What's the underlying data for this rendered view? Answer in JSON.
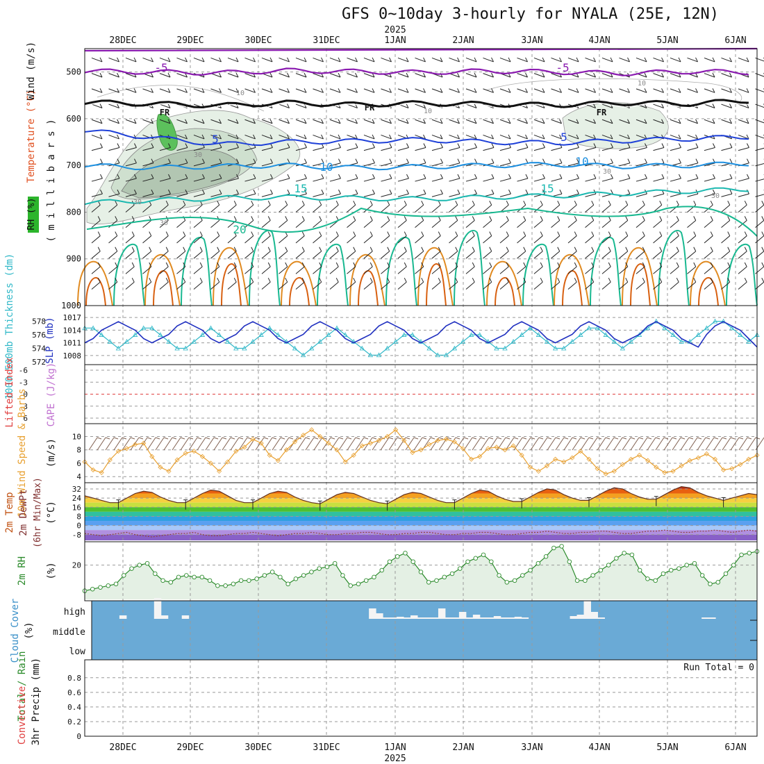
{
  "title": "GFS 0~10day 3-hourly for NYALA (25E, 12N)",
  "time_axis": {
    "labels": [
      "28DEC",
      "29DEC",
      "30DEC",
      "31DEC",
      "1JAN",
      "2JAN",
      "3JAN",
      "4JAN",
      "5JAN",
      "6JAN"
    ],
    "year_label": "2025"
  },
  "colors": {
    "grid": "#999999",
    "wind_purple": "#8a1ab0",
    "temp_blue": "#1e40d8",
    "temp_lightblue": "#1c8fe0",
    "temp_cyan": "#1ab8b0",
    "temp_teal": "#18b890",
    "temp_orange": "#e08a20",
    "slp_line": "#2030c0",
    "thickness_line": "#30b8c8",
    "wind10m_line": "#e8a030",
    "rh2m_line": "#2a8a2a",
    "cloud_fill": "#6aaad6",
    "lifted_zero": "#e04040"
  },
  "chart_data": [
    {
      "type": "heatmap",
      "panel": "cross-section",
      "ylabel_parts": [
        "RH (%)",
        "Temperature (°C)",
        "Wind (m/s)",
        "( m i l l i b a r s )"
      ],
      "y_ticks": [
        500,
        600,
        700,
        800,
        900,
        1000
      ],
      "ylim": [
        1000,
        450
      ],
      "contour_labels": {
        "temperature": [
          "-5",
          "-5",
          "5",
          "5",
          "10",
          "10",
          "15",
          "15",
          "20"
        ],
        "rh": [
          "30",
          "30",
          "30",
          "10",
          "10",
          "10",
          "30",
          "30"
        ],
        "freezing": [
          "FR",
          "FR",
          "FR"
        ]
      },
      "temp_levels_mb": {
        "minus5": [
          498,
          500,
          502,
          497,
          499,
          501,
          498,
          500,
          503,
          499,
          501
        ],
        "freezing": [
          565,
          568,
          572,
          566,
          570,
          567,
          569,
          571,
          566,
          568,
          560
        ],
        "plus5": [
          625,
          640,
          655,
          650,
          648,
          645,
          650,
          652,
          647,
          643,
          638
        ],
        "plus10": [
          700,
          705,
          702,
          700,
          705,
          703,
          700,
          698,
          702,
          700,
          695
        ],
        "plus15": [
          780,
          775,
          770,
          768,
          770,
          772,
          768,
          765,
          760,
          755,
          750
        ]
      }
    },
    {
      "type": "line",
      "panel": "SLP and 1000-500mb thickness",
      "ylabel_left": "1000-500mb Thickness (dm)",
      "ylabel_right": "SLP (mb)",
      "y_ticks_left": [
        572,
        574,
        576,
        578
      ],
      "y_ticks_right": [
        1008,
        1011,
        1014,
        1017
      ],
      "series": [
        {
          "name": "SLP (mb)",
          "values": [
            1011,
            1012,
            1014,
            1015,
            1016,
            1015,
            1014,
            1012,
            1011,
            1012,
            1013,
            1015,
            1016,
            1015,
            1014,
            1012,
            1011,
            1012,
            1013,
            1015,
            1016,
            1015,
            1014,
            1012,
            1011,
            1012,
            1013,
            1015,
            1016,
            1015,
            1014,
            1012,
            1011,
            1012,
            1013,
            1015,
            1016,
            1015,
            1014,
            1012,
            1011,
            1012,
            1013,
            1015,
            1016,
            1015,
            1014,
            1012,
            1011,
            1012,
            1013,
            1015,
            1016,
            1015,
            1014,
            1012,
            1011,
            1012,
            1013,
            1015,
            1016,
            1015,
            1014,
            1012,
            1011,
            1012,
            1013,
            1015,
            1016,
            1015,
            1014,
            1012,
            1011,
            1010,
            1013,
            1015,
            1016,
            1015,
            1014,
            1012,
            1010
          ]
        },
        {
          "name": "1000-500mb Thickness (dm)",
          "values": [
            577,
            577,
            576,
            575,
            574,
            575,
            576,
            577,
            577,
            576,
            575,
            574,
            574,
            575,
            576,
            577,
            576,
            575,
            574,
            574,
            575,
            576,
            577,
            576,
            575,
            574,
            573,
            574,
            575,
            576,
            577,
            576,
            575,
            574,
            573,
            573,
            574,
            575,
            576,
            576,
            575,
            574,
            573,
            573,
            574,
            575,
            576,
            576,
            575,
            574,
            574,
            575,
            576,
            577,
            576,
            575,
            574,
            574,
            575,
            576,
            577,
            577,
            576,
            575,
            574,
            575,
            576,
            577,
            578,
            577,
            576,
            575,
            575,
            576,
            577,
            578,
            578,
            577,
            576,
            575,
            576
          ]
        }
      ]
    },
    {
      "type": "line",
      "panel": "Lifted Index / CAPE",
      "ylabel": "Lifted Index",
      "ylabel2": "CAPE (J/kg)",
      "y_ticks": [
        "-6",
        "-3",
        "0",
        "3",
        "6"
      ],
      "series": [
        {
          "name": "Lifted Index",
          "values": []
        }
      ]
    },
    {
      "type": "line",
      "panel": "10m Wind Speed & Barbs",
      "ylabel": "10m Wind Speed & Barbs",
      "yunit": "(m/s)",
      "y_ticks": [
        4,
        6,
        8,
        10
      ],
      "ylim": [
        3.5,
        11.5
      ],
      "series": [
        {
          "name": "10m Wind Speed",
          "values": [
            6.2,
            5.0,
            4.6,
            6.5,
            7.8,
            8.2,
            8.8,
            9.0,
            7.0,
            5.4,
            4.8,
            6.5,
            7.5,
            7.8,
            7.0,
            6.0,
            4.8,
            6.2,
            7.8,
            8.4,
            9.6,
            9.0,
            7.2,
            6.4,
            8.0,
            9.2,
            10.2,
            11.0,
            10.0,
            9.0,
            8.0,
            6.2,
            7.2,
            8.6,
            9.0,
            9.4,
            10.0,
            11.0,
            9.4,
            7.6,
            8.0,
            8.8,
            9.4,
            9.6,
            9.2,
            8.2,
            6.6,
            7.0,
            8.2,
            8.4,
            8.0,
            8.6,
            7.2,
            5.4,
            4.8,
            5.6,
            6.6,
            6.2,
            6.8,
            7.8,
            6.6,
            5.2,
            4.4,
            4.8,
            5.8,
            6.6,
            7.2,
            6.4,
            5.4,
            4.6,
            4.8,
            5.6,
            6.4,
            6.8,
            7.4,
            6.6,
            5.0,
            5.2,
            5.8,
            6.6,
            7.2
          ]
        }
      ]
    },
    {
      "type": "area",
      "panel": "2m Temp / DewPt",
      "ylabel": "2m Temp",
      "ylabel2": "2m DewPt",
      "ylabel3": "(6hr Min/Max)",
      "yunit": "(°C)",
      "y_ticks": [
        -8,
        0,
        8,
        16,
        24,
        32
      ],
      "ylim": [
        -13,
        35
      ],
      "series": [
        {
          "name": "2m Temp",
          "values": [
            26,
            24,
            22,
            20,
            20,
            24,
            28,
            30,
            29,
            25,
            22,
            20,
            20,
            24,
            28,
            31,
            30,
            26,
            22,
            20,
            20,
            24,
            28,
            30,
            29,
            25,
            22,
            20,
            19,
            23,
            27,
            29,
            28,
            25,
            22,
            20,
            19,
            23,
            27,
            29,
            28,
            25,
            22,
            20,
            20,
            24,
            28,
            31,
            30,
            26,
            23,
            21,
            21,
            25,
            29,
            32,
            31,
            27,
            24,
            22,
            22,
            26,
            30,
            33,
            32,
            28,
            25,
            23,
            23,
            27,
            31,
            34,
            33,
            29,
            26,
            24,
            22,
            24,
            26,
            28,
            27
          ]
        },
        {
          "name": "2m DewPt",
          "values": [
            -7,
            -8,
            -9,
            -8,
            -7,
            -6,
            -8,
            -9,
            -10,
            -9,
            -8,
            -7,
            -7,
            -6,
            -8,
            -9,
            -9,
            -8,
            -7,
            -7,
            -6,
            -7,
            -8,
            -9,
            -8,
            -7,
            -7,
            -6,
            -7,
            -8,
            -8,
            -7,
            -7,
            -6,
            -6,
            -7,
            -8,
            -8,
            -7,
            -7,
            -6,
            -6,
            -7,
            -8,
            -8,
            -7,
            -7,
            -6,
            -6,
            -7,
            -8,
            -8,
            -7,
            -6,
            -6,
            -5,
            -6,
            -7,
            -7,
            -6,
            -6,
            -5,
            -5,
            -6,
            -7,
            -7,
            -6,
            -5,
            -5,
            -4,
            -5,
            -6,
            -6,
            -5,
            -5,
            -4,
            -5,
            -6,
            -5,
            -4,
            -5
          ]
        }
      ]
    },
    {
      "type": "area",
      "panel": "2m RH",
      "ylabel": "2m RH",
      "yunit": "(%)",
      "y_ticks": [
        20
      ],
      "ylim": [
        0,
        32
      ],
      "series": [
        {
          "name": "2m RH",
          "values": [
            5,
            6,
            7,
            8,
            9,
            14,
            18,
            20,
            21,
            15,
            11,
            10,
            13,
            14,
            13,
            13,
            11,
            8,
            8,
            9,
            11,
            11,
            12,
            14,
            16,
            13,
            9,
            12,
            14,
            16,
            18,
            19,
            21,
            14,
            8,
            9,
            11,
            13,
            17,
            22,
            25,
            27,
            22,
            16,
            10,
            11,
            13,
            15,
            18,
            22,
            24,
            26,
            22,
            14,
            10,
            11,
            14,
            17,
            21,
            25,
            30,
            31,
            22,
            11,
            11,
            14,
            17,
            20,
            24,
            27,
            26,
            17,
            12,
            11,
            15,
            17,
            18,
            20,
            21,
            14,
            9,
            10,
            15,
            20,
            26,
            27,
            28
          ]
        }
      ]
    },
    {
      "type": "bar",
      "panel": "Cloud Cover",
      "ylabel": "Cloud Cover",
      "yunit": "(%)",
      "y_ticks": [
        "high",
        "middle",
        "low"
      ],
      "series": [
        {
          "name": "high",
          "values": [
            0,
            0,
            0,
            0,
            5,
            0,
            0,
            0,
            0,
            30,
            5,
            0,
            0,
            5,
            0,
            0,
            0,
            0,
            0,
            0,
            0,
            0,
            0,
            0,
            0,
            0,
            0,
            0,
            0,
            0,
            0,
            0,
            0,
            0,
            0,
            0,
            0,
            0,
            0,
            0,
            15,
            8,
            2,
            2,
            3,
            2,
            5,
            2,
            2,
            2,
            15,
            2,
            2,
            10,
            2,
            6,
            2,
            2,
            4,
            2,
            2,
            3,
            2,
            0,
            0,
            0,
            0,
            0,
            0,
            4,
            6,
            26,
            10,
            2,
            0,
            0,
            0,
            0,
            0,
            0,
            0,
            0,
            0,
            0,
            0,
            0,
            0,
            0,
            2,
            2,
            0,
            0,
            0,
            0,
            0,
            0
          ]
        }
      ]
    },
    {
      "type": "bar",
      "panel": "3hr Precip",
      "ylabel": "3hr Precip (mm)",
      "ylabel_left": "Total / Rain",
      "ylabel_left2": "Convective",
      "y_ticks": [
        0,
        0.2,
        0.4,
        0.6,
        0.8
      ],
      "ylim": [
        0,
        0.95
      ],
      "annotation": "Run Total = 0",
      "series": [
        {
          "name": "3hr Precip",
          "values": []
        }
      ]
    }
  ]
}
